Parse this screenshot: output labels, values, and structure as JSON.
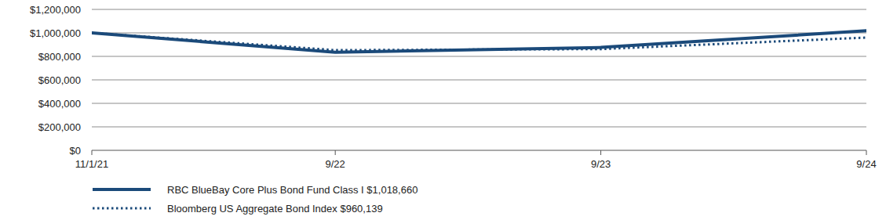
{
  "chart_data": {
    "type": "line",
    "x": [
      "11/1/21",
      "9/22",
      "9/23",
      "9/24"
    ],
    "xlim": [
      "11/1/21",
      "9/24"
    ],
    "xticks": [
      "11/1/21",
      "9/22",
      "9/23",
      "9/24"
    ],
    "ylim": [
      0,
      1200000
    ],
    "yticks": [
      {
        "value": 0,
        "label": "$0"
      },
      {
        "value": 200000,
        "label": "$200,000"
      },
      {
        "value": 400000,
        "label": "$400,000"
      },
      {
        "value": 600000,
        "label": "$600,000"
      },
      {
        "value": 800000,
        "label": "$800,000"
      },
      {
        "value": 1000000,
        "label": "$1,000,000"
      },
      {
        "value": 1200000,
        "label": "$1,200,000"
      }
    ],
    "grid": true,
    "legend": "bottom",
    "series": [
      {
        "name": "RBC BlueBay Core Plus Bond Fund Class I $1,018,660",
        "color": "#1b4a7a",
        "line_style": "solid",
        "values": [
          1000000,
          835000,
          876000,
          1018660
        ]
      },
      {
        "name": "Bloomberg US Aggregate Bond Index $960,139",
        "color": "#1b4a7a",
        "line_style": "dotted",
        "values": [
          1000000,
          853000,
          862000,
          960139
        ]
      }
    ]
  }
}
